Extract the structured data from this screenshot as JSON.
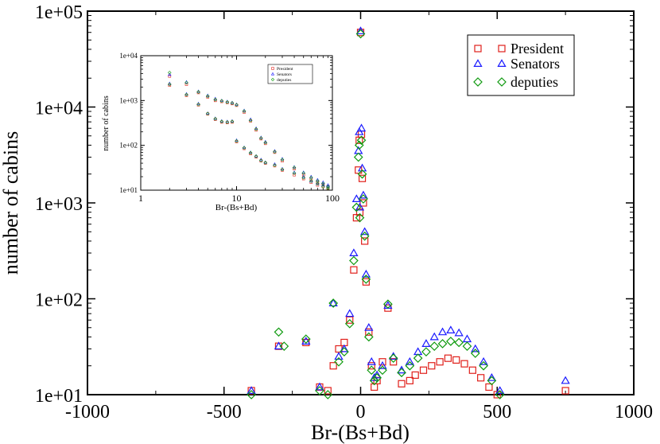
{
  "chart_data": [
    {
      "type": "scatter",
      "role": "main",
      "xlabel": "Br-(Bs+Bd)",
      "ylabel": "number of cabins",
      "xlim": [
        -1000,
        1000
      ],
      "ylim_log10": [
        1,
        5
      ],
      "x_ticks": [
        -1000,
        -500,
        0,
        500,
        1000
      ],
      "x_tick_labels": [
        "-1000",
        "-500",
        "0",
        "500",
        "1000"
      ],
      "y_ticks_log10": [
        1,
        2,
        3,
        4,
        5
      ],
      "y_tick_labels": [
        "1e+01",
        "1e+02",
        "1e+03",
        "1e+04",
        "1e+05"
      ],
      "legend": [
        "President",
        "Senators",
        "deputies"
      ],
      "series": [
        {
          "name": "President",
          "marker": "square",
          "color": "#e0201b",
          "points": [
            [
              -400,
              11
            ],
            [
              -300,
              32
            ],
            [
              -200,
              35
            ],
            [
              -150,
              12
            ],
            [
              -120,
              11
            ],
            [
              -100,
              20
            ],
            [
              -80,
              30
            ],
            [
              -60,
              35
            ],
            [
              -40,
              60
            ],
            [
              -25,
              200
            ],
            [
              -15,
              700
            ],
            [
              -8,
              2200
            ],
            [
              -5,
              4500
            ],
            [
              -3,
              800
            ],
            [
              0,
              60000
            ],
            [
              3,
              5200
            ],
            [
              6,
              1800
            ],
            [
              10,
              1000
            ],
            [
              15,
              400
            ],
            [
              20,
              150
            ],
            [
              30,
              45
            ],
            [
              40,
              20
            ],
            [
              50,
              12
            ],
            [
              60,
              14
            ],
            [
              80,
              22
            ],
            [
              100,
              80
            ],
            [
              120,
              22
            ],
            [
              150,
              13
            ],
            [
              180,
              14
            ],
            [
              200,
              16
            ],
            [
              230,
              18
            ],
            [
              260,
              20
            ],
            [
              290,
              22
            ],
            [
              320,
              24
            ],
            [
              350,
              23
            ],
            [
              380,
              21
            ],
            [
              410,
              18
            ],
            [
              440,
              15
            ],
            [
              470,
              12
            ],
            [
              500,
              10
            ],
            [
              750,
              11
            ]
          ]
        },
        {
          "name": "Senators",
          "marker": "triangle",
          "color": "#1a1aff",
          "points": [
            [
              -400,
              11
            ],
            [
              -300,
              32
            ],
            [
              -200,
              36
            ],
            [
              -150,
              12
            ],
            [
              -100,
              90
            ],
            [
              -80,
              25
            ],
            [
              -60,
              30
            ],
            [
              -40,
              70
            ],
            [
              -25,
              300
            ],
            [
              -15,
              1100
            ],
            [
              -8,
              3500
            ],
            [
              -5,
              5500
            ],
            [
              -3,
              900
            ],
            [
              0,
              62000
            ],
            [
              3,
              6000
            ],
            [
              6,
              2300
            ],
            [
              10,
              1200
            ],
            [
              15,
              500
            ],
            [
              20,
              180
            ],
            [
              30,
              50
            ],
            [
              40,
              22
            ],
            [
              50,
              15
            ],
            [
              60,
              16
            ],
            [
              80,
              20
            ],
            [
              100,
              85
            ],
            [
              120,
              25
            ],
            [
              150,
              18
            ],
            [
              180,
              22
            ],
            [
              210,
              28
            ],
            [
              240,
              34
            ],
            [
              270,
              40
            ],
            [
              300,
              45
            ],
            [
              330,
              47
            ],
            [
              360,
              44
            ],
            [
              390,
              38
            ],
            [
              420,
              30
            ],
            [
              450,
              22
            ],
            [
              480,
              15
            ],
            [
              510,
              11
            ],
            [
              750,
              14
            ]
          ]
        },
        {
          "name": "deputies",
          "marker": "diamond",
          "color": "#0e9a0e",
          "points": [
            [
              -400,
              10
            ],
            [
              -300,
              45
            ],
            [
              -280,
              32
            ],
            [
              -200,
              38
            ],
            [
              -150,
              11
            ],
            [
              -120,
              10
            ],
            [
              -100,
              90
            ],
            [
              -80,
              22
            ],
            [
              -60,
              28
            ],
            [
              -40,
              55
            ],
            [
              -25,
              250
            ],
            [
              -15,
              900
            ],
            [
              -8,
              3000
            ],
            [
              -5,
              4000
            ],
            [
              -3,
              700
            ],
            [
              0,
              58000
            ],
            [
              3,
              4500
            ],
            [
              6,
              2000
            ],
            [
              10,
              1100
            ],
            [
              15,
              450
            ],
            [
              20,
              160
            ],
            [
              30,
              40
            ],
            [
              40,
              18
            ],
            [
              50,
              14
            ],
            [
              60,
              15
            ],
            [
              80,
              18
            ],
            [
              100,
              88
            ],
            [
              120,
              24
            ],
            [
              150,
              17
            ],
            [
              180,
              20
            ],
            [
              210,
              24
            ],
            [
              240,
              28
            ],
            [
              270,
              32
            ],
            [
              300,
              34
            ],
            [
              330,
              36
            ],
            [
              360,
              35
            ],
            [
              390,
              32
            ],
            [
              420,
              27
            ],
            [
              450,
              20
            ],
            [
              480,
              14
            ],
            [
              510,
              10
            ]
          ]
        }
      ]
    },
    {
      "type": "scatter",
      "role": "inset",
      "xlabel": "Br-(Bs+Bd)",
      "ylabel": "number of cabins",
      "xscale": "log",
      "xlim_log10": [
        0,
        2
      ],
      "ylim_log10": [
        1,
        4
      ],
      "x_ticks_log10": [
        0,
        1,
        2
      ],
      "x_tick_labels": [
        "1",
        "10",
        "100"
      ],
      "y_ticks_log10": [
        1,
        2,
        3,
        4
      ],
      "y_tick_labels": [
        "1e+01",
        "1e+02",
        "1e+03",
        "1e+04"
      ],
      "legend": [
        "President",
        "Senators",
        "deputies"
      ],
      "series": [
        {
          "name": "President",
          "marker": "square",
          "color": "#e0201b",
          "points": [
            [
              2,
              3500
            ],
            [
              2,
              2200
            ],
            [
              3,
              2300
            ],
            [
              3,
              1300
            ],
            [
              4,
              1500
            ],
            [
              4,
              800
            ],
            [
              5,
              1200
            ],
            [
              5,
              500
            ],
            [
              6,
              1000
            ],
            [
              6,
              380
            ],
            [
              7,
              950
            ],
            [
              7,
              330
            ],
            [
              8,
              900
            ],
            [
              8,
              320
            ],
            [
              9,
              850
            ],
            [
              9,
              330
            ],
            [
              10,
              780
            ],
            [
              10,
              120
            ],
            [
              12,
              550
            ],
            [
              12,
              85
            ],
            [
              14,
              350
            ],
            [
              14,
              65
            ],
            [
              16,
              220
            ],
            [
              16,
              55
            ],
            [
              18,
              140
            ],
            [
              18,
              45
            ],
            [
              20,
              110
            ],
            [
              20,
              40
            ],
            [
              25,
              70
            ],
            [
              25,
              35
            ],
            [
              30,
              45
            ],
            [
              30,
              28
            ],
            [
              40,
              30
            ],
            [
              40,
              22
            ],
            [
              50,
              22
            ],
            [
              50,
              18
            ],
            [
              60,
              18
            ],
            [
              60,
              15
            ],
            [
              70,
              15
            ],
            [
              70,
              13
            ],
            [
              80,
              13
            ],
            [
              80,
              12
            ],
            [
              90,
              12
            ],
            [
              90,
              11
            ]
          ]
        },
        {
          "name": "Senators",
          "marker": "triangle",
          "color": "#1a1aff",
          "points": [
            [
              2,
              3800
            ],
            [
              2,
              2400
            ],
            [
              3,
              2600
            ],
            [
              3,
              1400
            ],
            [
              4,
              1600
            ],
            [
              4,
              850
            ],
            [
              5,
              1300
            ],
            [
              5,
              520
            ],
            [
              6,
              1100
            ],
            [
              6,
              400
            ],
            [
              7,
              1000
            ],
            [
              7,
              350
            ],
            [
              8,
              950
            ],
            [
              8,
              340
            ],
            [
              9,
              900
            ],
            [
              9,
              350
            ],
            [
              10,
              820
            ],
            [
              10,
              130
            ],
            [
              12,
              600
            ],
            [
              12,
              90
            ],
            [
              14,
              380
            ],
            [
              14,
              70
            ],
            [
              16,
              240
            ],
            [
              16,
              58
            ],
            [
              18,
              150
            ],
            [
              18,
              48
            ],
            [
              20,
              120
            ],
            [
              20,
              42
            ],
            [
              25,
              75
            ],
            [
              25,
              38
            ],
            [
              30,
              50
            ],
            [
              30,
              30
            ],
            [
              40,
              33
            ],
            [
              40,
              25
            ],
            [
              50,
              25
            ],
            [
              50,
              20
            ],
            [
              60,
              20
            ],
            [
              60,
              16
            ],
            [
              70,
              17
            ],
            [
              70,
              14
            ],
            [
              80,
              15
            ],
            [
              80,
              13
            ],
            [
              90,
              13
            ],
            [
              90,
              12
            ]
          ]
        },
        {
          "name": "deputies",
          "marker": "diamond",
          "color": "#0e9a0e",
          "points": [
            [
              2,
              4200
            ],
            [
              2,
              2300
            ],
            [
              3,
              2500
            ],
            [
              3,
              1350
            ],
            [
              4,
              1550
            ],
            [
              4,
              820
            ],
            [
              5,
              1250
            ],
            [
              5,
              510
            ],
            [
              6,
              1050
            ],
            [
              6,
              390
            ],
            [
              7,
              980
            ],
            [
              7,
              340
            ],
            [
              8,
              920
            ],
            [
              8,
              330
            ],
            [
              9,
              880
            ],
            [
              9,
              340
            ],
            [
              10,
              800
            ],
            [
              10,
              125
            ],
            [
              12,
              580
            ],
            [
              12,
              88
            ],
            [
              14,
              360
            ],
            [
              14,
              68
            ],
            [
              16,
              230
            ],
            [
              16,
              57
            ],
            [
              18,
              145
            ],
            [
              18,
              46
            ],
            [
              20,
              115
            ],
            [
              20,
              41
            ],
            [
              25,
              72
            ],
            [
              25,
              36
            ],
            [
              30,
              48
            ],
            [
              30,
              29
            ],
            [
              40,
              32
            ],
            [
              40,
              24
            ],
            [
              50,
              24
            ],
            [
              50,
              19
            ],
            [
              60,
              19
            ],
            [
              60,
              16
            ],
            [
              70,
              16
            ],
            [
              70,
              14
            ],
            [
              80,
              14
            ],
            [
              80,
              12
            ],
            [
              90,
              12
            ],
            [
              90,
              11
            ]
          ]
        }
      ]
    }
  ]
}
